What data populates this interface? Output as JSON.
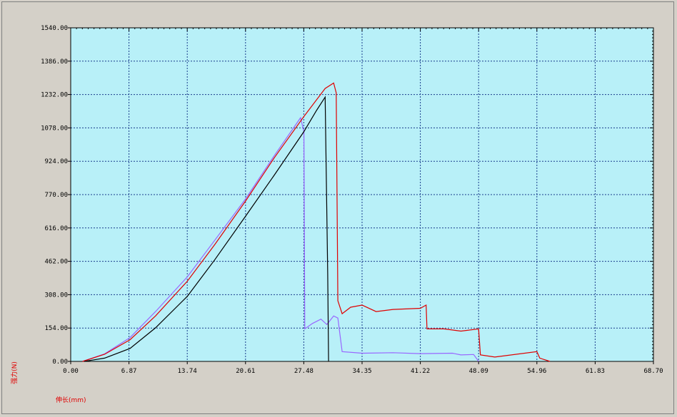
{
  "chart_data": {
    "type": "line",
    "title": "",
    "xlabel": "伸长(mm)",
    "ylabel": "强力(N)",
    "xlim": [
      0,
      68.7
    ],
    "ylim": [
      0,
      1540
    ],
    "x_ticks": [
      "0.00",
      "6.87",
      "13.74",
      "20.61",
      "27.48",
      "34.35",
      "41.22",
      "48.09",
      "54.96",
      "61.83",
      "68.70"
    ],
    "y_ticks": [
      "0.00",
      "154.00",
      "308.00",
      "462.00",
      "616.00",
      "770.00",
      "924.00",
      "1078.00",
      "1232.00",
      "1386.00",
      "1540.00"
    ],
    "grid": true,
    "legend": "none",
    "colors": {
      "plot_bg": "#b8f0f8",
      "window_bg": "#d4d0c8",
      "grid": "#1a3c8c",
      "label": "#e00000"
    },
    "series": [
      {
        "color": "#9966ff",
        "x": [
          1.4,
          4.0,
          7.0,
          10.0,
          13.74,
          17.0,
          20.61,
          24.0,
          27.1,
          27.5,
          27.6,
          28.5,
          29.5,
          30.2,
          31.0,
          31.5,
          32.0,
          34.35,
          38.0,
          41.22,
          45.0,
          46.0,
          47.5,
          48.1
        ],
        "y": [
          0,
          35,
          110,
          230,
          390,
          560,
          750,
          950,
          1125,
          1060,
          150,
          175,
          195,
          170,
          210,
          200,
          45,
          38,
          40,
          36,
          38,
          30,
          32,
          0
        ]
      },
      {
        "color": "#e00000",
        "x": [
          1.4,
          4.0,
          7.0,
          10.0,
          13.74,
          17.0,
          20.61,
          24.0,
          27.48,
          30.0,
          31.0,
          31.3,
          31.5,
          32.0,
          33.0,
          34.35,
          36.0,
          38.0,
          41.22,
          41.9,
          42.0,
          44.0,
          46.0,
          48.09,
          48.3,
          50.0,
          54.96,
          55.3,
          56.5
        ],
        "y": [
          0,
          33,
          100,
          210,
          370,
          540,
          740,
          940,
          1130,
          1260,
          1285,
          1240,
          280,
          220,
          250,
          260,
          230,
          240,
          245,
          260,
          150,
          150,
          140,
          150,
          30,
          20,
          45,
          15,
          0
        ]
      },
      {
        "color": "#000000",
        "x": [
          1.6,
          4.0,
          7.0,
          10.0,
          13.74,
          17.0,
          20.61,
          24.0,
          27.48,
          29.0,
          30.0,
          30.3,
          30.4
        ],
        "y": [
          0,
          15,
          60,
          155,
          300,
          470,
          670,
          860,
          1060,
          1160,
          1220,
          400,
          0
        ]
      }
    ]
  }
}
